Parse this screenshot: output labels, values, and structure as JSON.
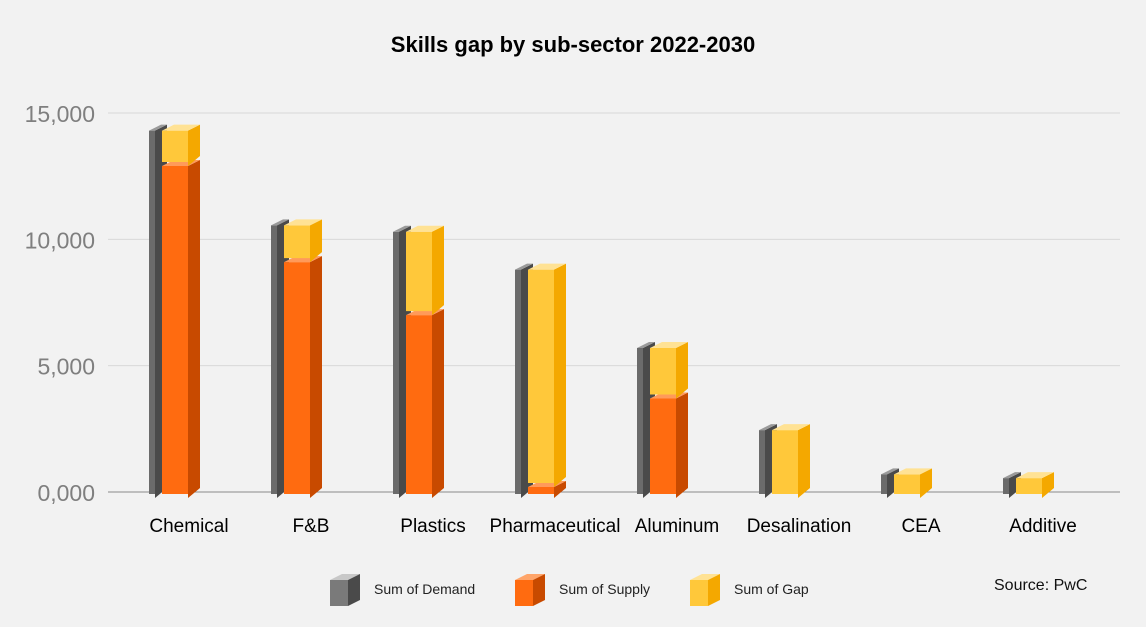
{
  "chart_data": {
    "type": "bar",
    "title": "Skills gap by sub-sector 2022-2030",
    "categories": [
      "Chemical",
      "F&B",
      "Plastics",
      "Pharmaceutical",
      "Aluminum",
      "Desalination",
      "CEA",
      "Additive"
    ],
    "series": [
      {
        "name": "Sum of Demand",
        "values": [
          14300,
          10550,
          10300,
          8800,
          5700,
          2450,
          700,
          550
        ]
      },
      {
        "name": "Sum of Supply",
        "values": [
          12900,
          9100,
          7000,
          200,
          3700,
          0,
          0,
          0
        ]
      },
      {
        "name": "Sum of Gap",
        "values": [
          1400,
          1450,
          3300,
          8600,
          2000,
          2450,
          700,
          550
        ]
      }
    ],
    "stacked_series": [
      "Sum of Supply",
      "Sum of Gap"
    ],
    "y_ticks": [
      "0,000",
      "5,000",
      "10,000",
      "15,000"
    ],
    "ylim": [
      0,
      15000
    ],
    "grid": true,
    "legend_position": "bottom",
    "source": "Source: PwC"
  },
  "colors": {
    "demand": [
      "#6b6b6b",
      "#9a9a9a",
      "#4a4a4a"
    ],
    "supply": [
      "#ff6b10",
      "#ff9a5a",
      "#c84a00"
    ],
    "gap": [
      "#ffc83a",
      "#ffe294",
      "#f4a800"
    ]
  }
}
